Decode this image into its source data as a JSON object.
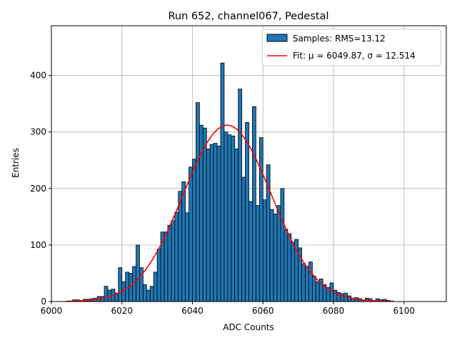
{
  "chart_data": {
    "type": "bar",
    "title": "Run 652, channel067, Pedestal",
    "xlabel": "ADC Counts",
    "ylabel": "Entries",
    "xlim": [
      6000,
      6112
    ],
    "ylim": [
      0,
      488
    ],
    "xticks": [
      6000,
      6020,
      6040,
      6060,
      6080,
      6100
    ],
    "yticks": [
      0,
      100,
      200,
      300,
      400
    ],
    "grid": true,
    "legend_position": "top-right",
    "histogram": {
      "name": "Samples: RMS=13.12",
      "color": "#1f77b4",
      "edgecolor": "#000000",
      "bin_width": 1,
      "bins": [
        [
          6005,
          1
        ],
        [
          6006,
          3
        ],
        [
          6007,
          3
        ],
        [
          6008,
          2
        ],
        [
          6009,
          4
        ],
        [
          6010,
          4
        ],
        [
          6011,
          5
        ],
        [
          6012,
          6
        ],
        [
          6013,
          9
        ],
        [
          6014,
          9
        ],
        [
          6015,
          27
        ],
        [
          6016,
          20
        ],
        [
          6017,
          22
        ],
        [
          6018,
          15
        ],
        [
          6019,
          60
        ],
        [
          6020,
          35
        ],
        [
          6021,
          52
        ],
        [
          6022,
          50
        ],
        [
          6023,
          62
        ],
        [
          6024,
          100
        ],
        [
          6025,
          60
        ],
        [
          6026,
          30
        ],
        [
          6027,
          20
        ],
        [
          6028,
          27
        ],
        [
          6029,
          52
        ],
        [
          6030,
          93
        ],
        [
          6031,
          123
        ],
        [
          6032,
          123
        ],
        [
          6033,
          135
        ],
        [
          6034,
          143
        ],
        [
          6035,
          158
        ],
        [
          6036,
          195
        ],
        [
          6037,
          212
        ],
        [
          6038,
          157
        ],
        [
          6039,
          238
        ],
        [
          6040,
          252
        ],
        [
          6041,
          352
        ],
        [
          6042,
          312
        ],
        [
          6043,
          307
        ],
        [
          6044,
          270
        ],
        [
          6045,
          278
        ],
        [
          6046,
          280
        ],
        [
          6047,
          275
        ],
        [
          6048,
          422
        ],
        [
          6049,
          300
        ],
        [
          6050,
          295
        ],
        [
          6051,
          293
        ],
        [
          6052,
          270
        ],
        [
          6053,
          376
        ],
        [
          6054,
          220
        ],
        [
          6055,
          317
        ],
        [
          6056,
          177
        ],
        [
          6057,
          345
        ],
        [
          6058,
          170
        ],
        [
          6059,
          290
        ],
        [
          6060,
          180
        ],
        [
          6061,
          242
        ],
        [
          6062,
          163
        ],
        [
          6063,
          155
        ],
        [
          6064,
          170
        ],
        [
          6065,
          200
        ],
        [
          6066,
          128
        ],
        [
          6067,
          120
        ],
        [
          6068,
          105
        ],
        [
          6069,
          110
        ],
        [
          6070,
          95
        ],
        [
          6071,
          67
        ],
        [
          6072,
          62
        ],
        [
          6073,
          70
        ],
        [
          6074,
          45
        ],
        [
          6075,
          35
        ],
        [
          6076,
          40
        ],
        [
          6077,
          30
        ],
        [
          6078,
          25
        ],
        [
          6079,
          33
        ],
        [
          6080,
          20
        ],
        [
          6081,
          16
        ],
        [
          6082,
          14
        ],
        [
          6083,
          15
        ],
        [
          6084,
          10
        ],
        [
          6085,
          6
        ],
        [
          6086,
          7
        ],
        [
          6087,
          5
        ],
        [
          6088,
          3
        ],
        [
          6089,
          6
        ],
        [
          6090,
          5
        ],
        [
          6091,
          2
        ],
        [
          6092,
          5
        ],
        [
          6093,
          3
        ],
        [
          6094,
          4
        ],
        [
          6095,
          2
        ],
        [
          6096,
          1
        ]
      ]
    },
    "fit": {
      "name": "Fit: μ = 6049.87, σ = 12.514",
      "color": "#ff0000",
      "mu": 6049.87,
      "sigma": 12.514,
      "amplitude": 312,
      "x_range": [
        6004,
        6097
      ]
    }
  }
}
